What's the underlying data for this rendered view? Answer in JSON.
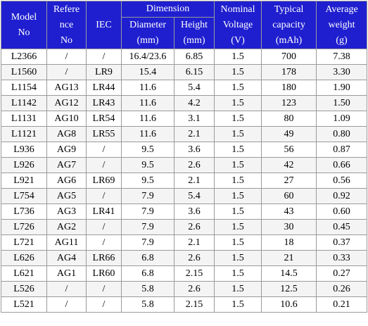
{
  "headers": {
    "model": [
      "Model",
      "No"
    ],
    "reference": [
      "Refere",
      "nce",
      "No"
    ],
    "iec": "IEC",
    "dimension": "Dimension",
    "diameter": [
      "Diameter",
      "(mm)"
    ],
    "height": [
      "Height",
      "(mm)"
    ],
    "voltage": [
      "Nominal",
      "Voltage",
      "(V)"
    ],
    "capacity": [
      "Typical",
      "capacity",
      "(mAh)"
    ],
    "weight": [
      "Average",
      "weight",
      "(g)"
    ]
  },
  "rows": [
    [
      "L2366",
      "/",
      "/",
      "16.4/23.6",
      "6.85",
      "1.5",
      "700",
      "7.38"
    ],
    [
      "L1560",
      "/",
      "LR9",
      "15.4",
      "6.15",
      "1.5",
      "178",
      "3.30"
    ],
    [
      "L1154",
      "AG13",
      "LR44",
      "11.6",
      "5.4",
      "1.5",
      "180",
      "1.90"
    ],
    [
      "L1142",
      "AG12",
      "LR43",
      "11.6",
      "4.2",
      "1.5",
      "123",
      "1.50"
    ],
    [
      "L1131",
      "AG10",
      "LR54",
      "11.6",
      "3.1",
      "1.5",
      "80",
      "1.09"
    ],
    [
      "L1121",
      "AG8",
      "LR55",
      "11.6",
      "2.1",
      "1.5",
      "49",
      "0.80"
    ],
    [
      "L936",
      "AG9",
      "/",
      "9.5",
      "3.6",
      "1.5",
      "56",
      "0.87"
    ],
    [
      "L926",
      "AG7",
      "/",
      "9.5",
      "2.6",
      "1.5",
      "42",
      "0.66"
    ],
    [
      "L921",
      "AG6",
      "LR69",
      "9.5",
      "2.1",
      "1.5",
      "27",
      "0.56"
    ],
    [
      "L754",
      "AG5",
      "/",
      "7.9",
      "5.4",
      "1.5",
      "60",
      "0.92"
    ],
    [
      "L736",
      "AG3",
      "LR41",
      "7.9",
      "3.6",
      "1.5",
      "43",
      "0.60"
    ],
    [
      "L726",
      "AG2",
      "/",
      "7.9",
      "2.6",
      "1.5",
      "30",
      "0.45"
    ],
    [
      "L721",
      "AG11",
      "/",
      "7.9",
      "2.1",
      "1.5",
      "18",
      "0.37"
    ],
    [
      "L626",
      "AG4",
      "LR66",
      "6.8",
      "2.6",
      "1.5",
      "21",
      "0.33"
    ],
    [
      "L621",
      "AG1",
      "LR60",
      "6.8",
      "2.15",
      "1.5",
      "14.5",
      "0.27"
    ],
    [
      "L526",
      "/",
      "/",
      "5.8",
      "2.6",
      "1.5",
      "12.5",
      "0.26"
    ],
    [
      "L521",
      "/",
      "/",
      "5.8",
      "2.15",
      "1.5",
      "10.6",
      "0.21"
    ]
  ],
  "colors": {
    "header_bg": "#1f1fd0",
    "header_text": "#ffffff",
    "border": "#9a9a9a"
  }
}
